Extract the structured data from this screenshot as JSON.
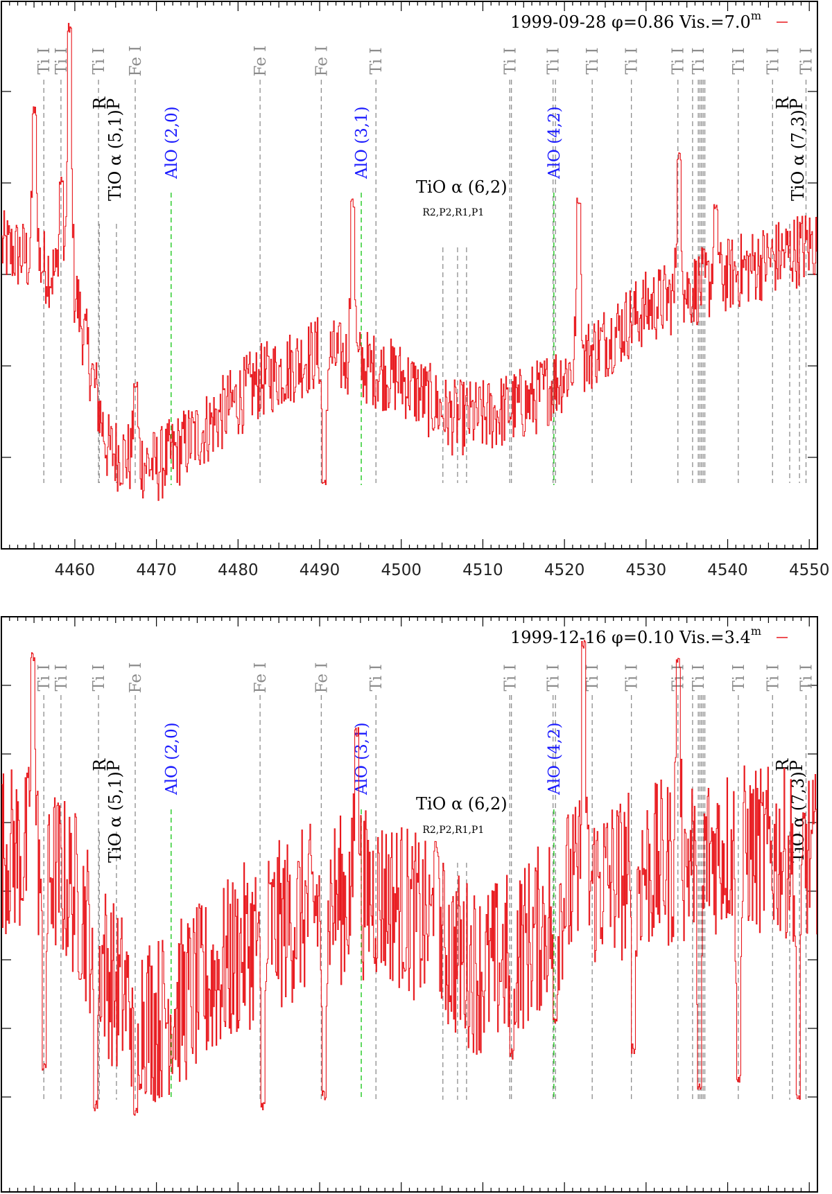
{
  "chart_data": [
    {
      "type": "line",
      "panel": "top",
      "legend": {
        "date": "1999-09-28",
        "phase": "φ=0.86",
        "vis": "Vis.=7.0",
        "vis_sup": "m"
      },
      "series_color": "#e8161b",
      "xlim": [
        4451,
        4551
      ],
      "xticks": [
        4460,
        4470,
        4480,
        4490,
        4500,
        4510,
        4520,
        4530,
        4540,
        4550
      ],
      "xtick_labels": [
        "4460",
        "4470",
        "4480",
        "4490",
        "4500",
        "4510",
        "4520",
        "4530",
        "4540",
        "4550"
      ],
      "ylim": [
        0,
        1
      ],
      "y_minor_ticks": 6,
      "continuum": [
        [
          4451,
          0.55
        ],
        [
          4456,
          0.52
        ],
        [
          4460,
          0.47
        ],
        [
          4464,
          0.18
        ],
        [
          4470,
          0.15
        ],
        [
          4476,
          0.22
        ],
        [
          4482,
          0.3
        ],
        [
          4490,
          0.36
        ],
        [
          4496,
          0.33
        ],
        [
          4500,
          0.31
        ],
        [
          4506,
          0.24
        ],
        [
          4510,
          0.24
        ],
        [
          4516,
          0.27
        ],
        [
          4520,
          0.32
        ],
        [
          4530,
          0.44
        ],
        [
          4540,
          0.5
        ],
        [
          4551,
          0.56
        ]
      ],
      "noise_amplitude": 0.07,
      "spikes": [
        [
          4455,
          0.8
        ],
        [
          4458.3,
          0.67
        ],
        [
          4459.3,
          0.95
        ],
        [
          4467.4,
          0.3
        ],
        [
          4490.5,
          0.12
        ],
        [
          4494,
          0.63
        ],
        [
          4521.7,
          0.64
        ],
        [
          4534,
          0.72
        ],
        [
          4538.5,
          0.62
        ]
      ]
    },
    {
      "type": "line",
      "panel": "bottom",
      "legend": {
        "date": "1999-12-16",
        "phase": "φ=0.10",
        "vis": "Vis.=3.4",
        "vis_sup": "m"
      },
      "series_color": "#e8161b",
      "xlim": [
        4451,
        4551
      ],
      "xticks": [
        4460,
        4470,
        4480,
        4490,
        4500,
        4510,
        4520,
        4530,
        4540,
        4550
      ],
      "xtick_labels": [
        "4460",
        "4470",
        "4480",
        "4490",
        "4500",
        "4510",
        "4520",
        "4530",
        "4540",
        "4550"
      ],
      "ylim": [
        0,
        1
      ],
      "y_minor_ticks": 6,
      "continuum": [
        [
          4451,
          0.6
        ],
        [
          4456,
          0.58
        ],
        [
          4460,
          0.52
        ],
        [
          4465,
          0.35
        ],
        [
          4470,
          0.3
        ],
        [
          4476,
          0.36
        ],
        [
          4482,
          0.44
        ],
        [
          4490,
          0.5
        ],
        [
          4496,
          0.52
        ],
        [
          4500,
          0.5
        ],
        [
          4506,
          0.42
        ],
        [
          4510,
          0.38
        ],
        [
          4516,
          0.44
        ],
        [
          4520,
          0.52
        ],
        [
          4530,
          0.56
        ],
        [
          4540,
          0.6
        ],
        [
          4551,
          0.58
        ]
      ],
      "noise_amplitude": 0.15,
      "spikes": [
        [
          4454.8,
          0.93
        ],
        [
          4456.2,
          0.22
        ],
        [
          4462.5,
          0.15
        ],
        [
          4467.4,
          0.14
        ],
        [
          4483,
          0.15
        ],
        [
          4490.5,
          0.17
        ],
        [
          4494.5,
          0.8
        ],
        [
          4504.2,
          0.6
        ],
        [
          4513.5,
          0.24
        ],
        [
          4518.8,
          0.3
        ],
        [
          4522.3,
          0.95
        ],
        [
          4528.4,
          0.25
        ],
        [
          4533.9,
          0.92
        ],
        [
          4536.5,
          0.18
        ],
        [
          4541.3,
          0.2
        ],
        [
          4548.6,
          0.16
        ]
      ]
    }
  ],
  "element_lines": [
    {
      "label": "Ti I",
      "x": 4456.2
    },
    {
      "label": "Ti I",
      "x": 4458.3
    },
    {
      "label": "Ti I",
      "x": 4462.9
    },
    {
      "label": "Fe I",
      "x": 4467.4
    },
    {
      "label": "Fe I",
      "x": 4482.7
    },
    {
      "label": "Fe I",
      "x": 4490.2
    },
    {
      "label": "Ti I",
      "x": 4496.9
    },
    {
      "label": "Ti I",
      "x": 4513.3
    },
    {
      "label": "Ti I",
      "x": 4518.6
    },
    {
      "label": "Ti I",
      "x": 4523.4
    },
    {
      "label": "Ti I",
      "x": 4528.2
    },
    {
      "label": "Ti I",
      "x": 4533.9
    },
    {
      "label": "Ti I",
      "x": 4536.4
    },
    {
      "label": "Ti I",
      "x": 4541.3
    },
    {
      "label": "Ti I",
      "x": 4545.5
    },
    {
      "label": "Ti I",
      "x": 4549.6
    }
  ],
  "extra_element_line_positions": [
    4513.5,
    4518.9,
    4535.7,
    4536.6,
    4536.8,
    4537.0,
    4537.2
  ],
  "aio_bands": [
    {
      "label": "AlO (2,0)",
      "x": 4471.8
    },
    {
      "label": "AlO (3,1)",
      "x": 4495.1
    },
    {
      "label": "AlO (4,2)",
      "x": 4518.7
    }
  ],
  "tio_bands": [
    {
      "label": "TiO α (5,1)",
      "sup": "R",
      "sub": "P",
      "x_r": 4463.0,
      "x_p": 4465.1
    },
    {
      "label": "TiO α (7,3)",
      "sup": "R",
      "sub": "P",
      "x_r": 4547.6,
      "x_p": 4548.8
    }
  ],
  "tio_62": {
    "label": "TiO α (6,2)",
    "sublabel": "R2,P2,R1,P1",
    "lines": [
      4505.1,
      4506.9,
      4508.0
    ]
  }
}
